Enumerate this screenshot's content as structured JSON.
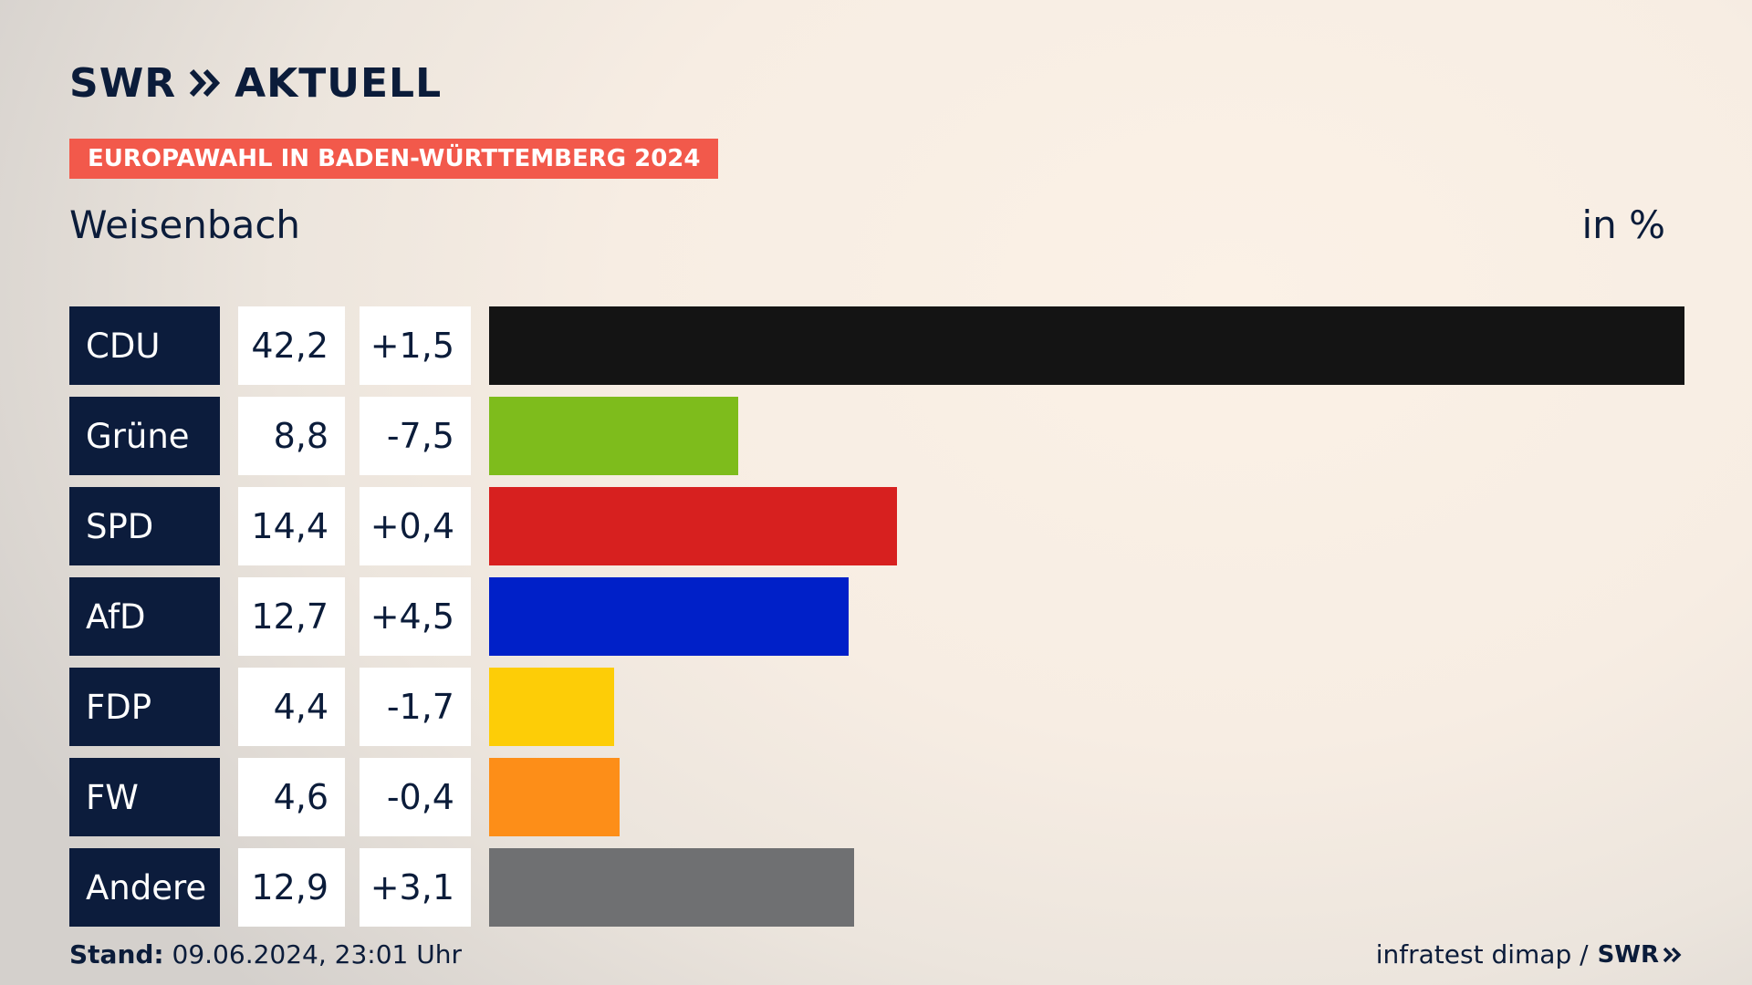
{
  "header": {
    "logo_text_left": "SWR",
    "logo_text_right": "AKTUELL",
    "badge": "EUROPAWAHL IN BADEN-WÜRTTEMBERG 2024",
    "region": "Weisenbach",
    "unit": "in %"
  },
  "footer": {
    "stand_label": "Stand:",
    "stand_value": "09.06.2024, 23:01 Uhr",
    "source": "infratest dimap /",
    "source_logo": "SWR"
  },
  "chart_data": {
    "type": "bar",
    "orientation": "horizontal",
    "categories": [
      "CDU",
      "Grüne",
      "SPD",
      "AfD",
      "FDP",
      "FW",
      "Andere"
    ],
    "values": [
      42.2,
      8.8,
      14.4,
      12.7,
      4.4,
      4.6,
      12.9
    ],
    "value_labels": [
      "42,2",
      "8,8",
      "14,4",
      "12,7",
      "4,4",
      "4,6",
      "12,9"
    ],
    "change_labels": [
      "+1,5",
      "-7,5",
      "+0,4",
      "+4,5",
      "-1,7",
      "-0,4",
      "+3,1"
    ],
    "changes": [
      1.5,
      -7.5,
      0.4,
      4.5,
      -1.7,
      -0.4,
      3.1
    ],
    "colors": [
      "#141414",
      "#7ebc1c",
      "#d7201f",
      "#0020c8",
      "#fdcd07",
      "#fd8e18",
      "#6f7072"
    ],
    "xlim": [
      0,
      42.2
    ],
    "grid": false,
    "legend": "none"
  }
}
